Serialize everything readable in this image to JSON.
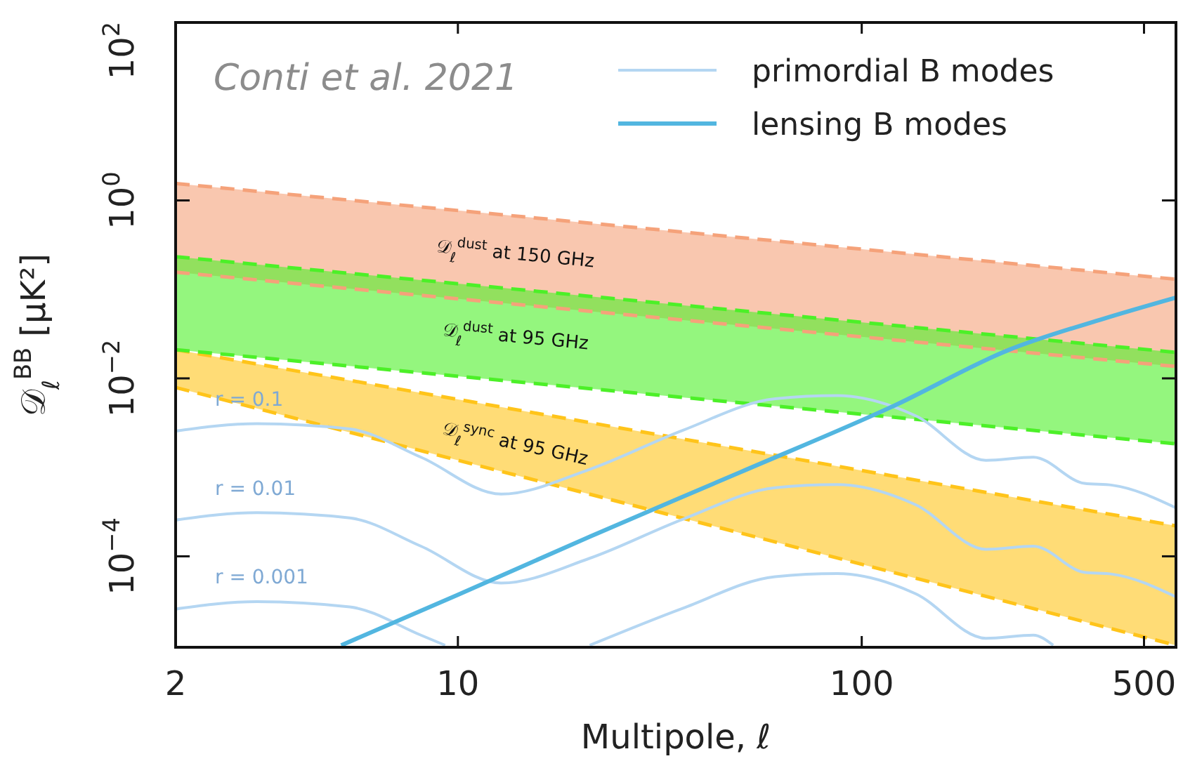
{
  "chart_data": {
    "type": "line",
    "xlabel": "Multipole, ℓ",
    "ylabel": "𝒟$_{ℓ}$$^{BB}$ [μK²]",
    "log": "xy",
    "xlim": [
      2,
      600
    ],
    "ylim": [
      9.5e-06,
      100
    ],
    "xticks": [
      2,
      10,
      100,
      500
    ],
    "yticks": [
      {
        "value": 0.0001,
        "label": "10$^{−4}$"
      },
      {
        "value": 0.01,
        "label": "10$^{−2}$"
      },
      {
        "value": 1,
        "label": "10$^{0}$"
      },
      {
        "value": 100,
        "label": "10$^{2}$"
      }
    ],
    "legend": "top right",
    "grid": false,
    "annotations": [
      "Conti et al. 2021",
      "r = 0.1",
      "r = 0.01",
      "r = 0.001"
    ],
    "series": [
      {
        "name": "𝒟$_{ℓ}$$^{dust}$ at 150 GHz",
        "color": "#f5a27a",
        "line_style": "dashed",
        "x": [
          2,
          600
        ],
        "values": [
          1.55,
          0.13
        ],
        "lower": [
          0.156,
          0.0136
        ],
        "upper": [
          1.55,
          0.13
        ]
      },
      {
        "name": "𝒟$_{ℓ}$$^{dust}$ at 95 GHz",
        "color": "#4cf028",
        "line_style": "dashed",
        "x": [
          2,
          600
        ],
        "values": [
          0.233,
          0.0196
        ],
        "lower": [
          0.021,
          0.00184
        ],
        "upper": [
          0.233,
          0.0196
        ]
      },
      {
        "name": "𝒟$_{ℓ}$$^{sync}$ at 95 GHz",
        "color": "#ffc41a",
        "line_style": "dashed",
        "x": [
          2,
          600
        ],
        "values": [
          0.021,
          0.00022
        ],
        "lower": [
          0.0079,
          1e-05
        ],
        "upper": [
          0.021,
          0.00022
        ]
      },
      {
        "color": "#f5a27a",
        "line_style": "dashed",
        "x": [
          2,
          600
        ],
        "values": [
          0.156,
          0.0136
        ]
      },
      {
        "color": "#4cf028",
        "line_style": "dashed",
        "x": [
          2,
          600
        ],
        "values": [
          0.021,
          0.00184
        ]
      },
      {
        "color": "#ffc41a",
        "line_style": "dashed",
        "x": [
          2,
          600
        ],
        "values": [
          0.0079,
          1e-05
        ]
      },
      {
        "name": "primordial B modes",
        "color": "#b4d6f2",
        "x": [
          2,
          3.18,
          5.4,
          8.1,
          12.8,
          21.2,
          36,
          61,
          87,
          136,
          203,
          266,
          356,
          417,
          600
        ],
        "values": [
          0.00256,
          0.0031,
          0.0027,
          0.0013,
          0.0005,
          0.00095,
          0.0026,
          0.0059,
          0.0064,
          0.0038,
          0.0012,
          0.0013,
          0.00066,
          0.00063,
          0.00035
        ]
      },
      {
        "color": "#b4d6f2",
        "x": [
          2,
          3.18,
          5.4,
          8.1,
          12.8,
          21.2,
          36,
          61,
          87,
          136,
          203,
          266,
          356,
          417,
          600
        ],
        "values": [
          0.000256,
          0.00031,
          0.00027,
          0.00013,
          5e-05,
          9.5e-05,
          0.00026,
          0.00059,
          0.00064,
          0.00038,
          0.00012,
          0.00013,
          6.6e-05,
          6.3e-05,
          3.5e-05
        ]
      },
      {
        "color": "#b4d6f2",
        "x": [
          2,
          3.18,
          5.4,
          8.1,
          9.3,
          12.8,
          21.2,
          36,
          61,
          87,
          136,
          203,
          266,
          298
        ],
        "values": [
          2.56e-05,
          3.1e-05,
          2.7e-05,
          1.3e-05,
          1e-05,
          null,
          1e-05,
          2.6e-05,
          5.9e-05,
          6.4e-05,
          3.8e-05,
          1.2e-05,
          1.3e-05,
          1e-05
        ]
      },
      {
        "name": "lensing B modes",
        "color": "#52b6e0",
        "x": [
          5.14,
          10,
          21.2,
          50,
          120,
          232,
          398,
          600
        ],
        "values": [
          1e-05,
          3.7e-05,
          0.000166,
          0.00088,
          0.0049,
          0.021,
          0.047,
          0.081
        ]
      }
    ]
  }
}
